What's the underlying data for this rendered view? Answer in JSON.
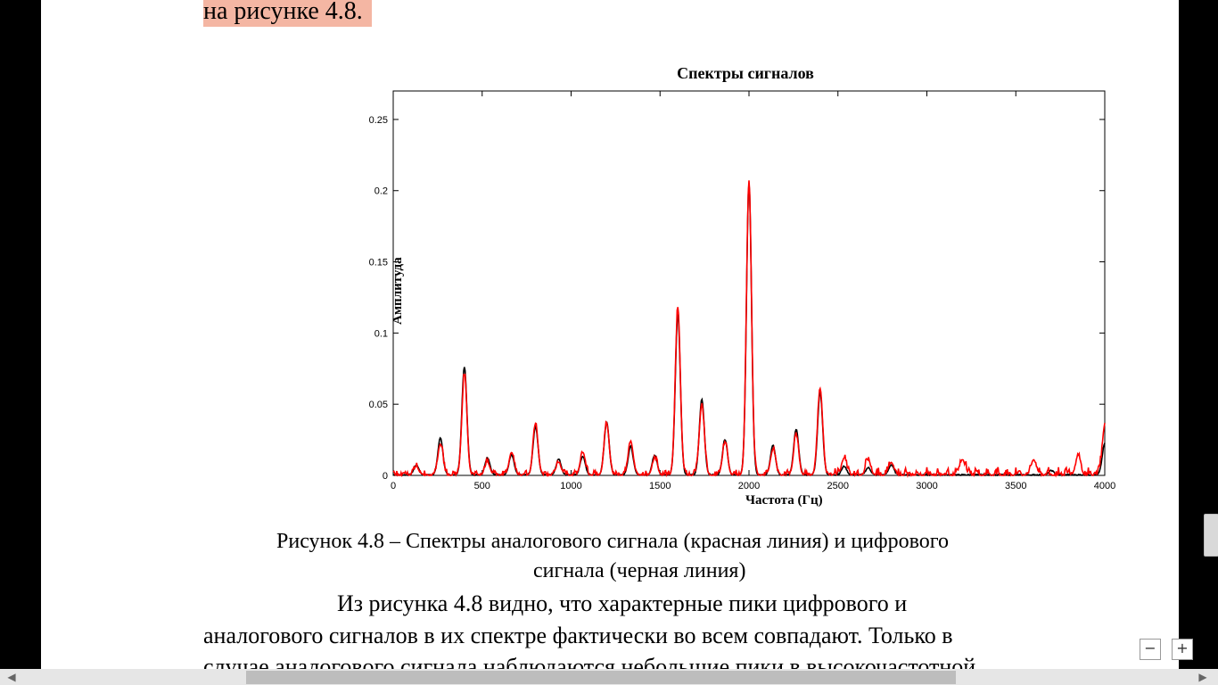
{
  "document": {
    "top_line": "на рисунке 4.8.",
    "caption_line1": "Рисунок 4.8 – Спектры аналогового сигнала (красная линия) и цифрового",
    "caption_line2": "сигнала (черная линия)",
    "para_line1": "Из рисунка 4.8 видно, что характерные пики цифрового и",
    "para_line2": "аналогового сигналов в их спектре фактически во всем совпадают. Только в",
    "para_line3": "случае аналогового сигнала наблюдаются небольшие пики в высокочастотной"
  },
  "controls": {
    "zoom_out": "−",
    "zoom_in": "+",
    "scroll_left": "◀",
    "scroll_right": "▶"
  },
  "colors": {
    "analog": "#ff0000",
    "digital": "#000000",
    "highlight": "#f4b6a3"
  },
  "chart_data": {
    "type": "line",
    "title": "Спектры сигналов",
    "xlabel": "Частота (Гц)",
    "ylabel": "Амплитуда",
    "xlim": [
      0,
      4000
    ],
    "ylim": [
      0,
      0.27
    ],
    "xticks": [
      0,
      500,
      1000,
      1500,
      2000,
      2500,
      3000,
      3500,
      4000
    ],
    "yticks": [
      0,
      0.05,
      0.1,
      0.15,
      0.2,
      0.25
    ],
    "ytick_labels": [
      "0",
      "0.05",
      "0.1",
      "0.15",
      "0.2",
      "0.25"
    ],
    "grid": false,
    "series": [
      {
        "color": "#000000",
        "peaks": [
          [
            130,
            0.007
          ],
          [
            265,
            0.026
          ],
          [
            400,
            0.076
          ],
          [
            530,
            0.012
          ],
          [
            665,
            0.014
          ],
          [
            800,
            0.034
          ],
          [
            930,
            0.011
          ],
          [
            1065,
            0.013
          ],
          [
            1200,
            0.037
          ],
          [
            1335,
            0.02
          ],
          [
            1470,
            0.014
          ],
          [
            1600,
            0.113
          ],
          [
            1735,
            0.053
          ],
          [
            1865,
            0.025
          ],
          [
            2000,
            0.205
          ],
          [
            2135,
            0.021
          ],
          [
            2265,
            0.032
          ],
          [
            2400,
            0.058
          ],
          [
            2535,
            0.006
          ],
          [
            2670,
            0.005
          ],
          [
            2800,
            0.007
          ],
          [
            3700,
            0.003
          ],
          [
            4000,
            0.022
          ]
        ]
      },
      {
        "color": "#ff0000",
        "peaks": [
          [
            130,
            0.006
          ],
          [
            265,
            0.022
          ],
          [
            400,
            0.07
          ],
          [
            530,
            0.009
          ],
          [
            665,
            0.016
          ],
          [
            800,
            0.035
          ],
          [
            930,
            0.009
          ],
          [
            1065,
            0.016
          ],
          [
            1200,
            0.036
          ],
          [
            1335,
            0.024
          ],
          [
            1470,
            0.012
          ],
          [
            1600,
            0.117
          ],
          [
            1735,
            0.05
          ],
          [
            1865,
            0.023
          ],
          [
            2000,
            0.207
          ],
          [
            2135,
            0.018
          ],
          [
            2265,
            0.028
          ],
          [
            2400,
            0.061
          ],
          [
            2535,
            0.012
          ],
          [
            2670,
            0.01
          ],
          [
            2800,
            0.009
          ],
          [
            3200,
            0.011
          ],
          [
            3600,
            0.011
          ],
          [
            3850,
            0.013
          ],
          [
            4000,
            0.035
          ]
        ]
      }
    ]
  }
}
